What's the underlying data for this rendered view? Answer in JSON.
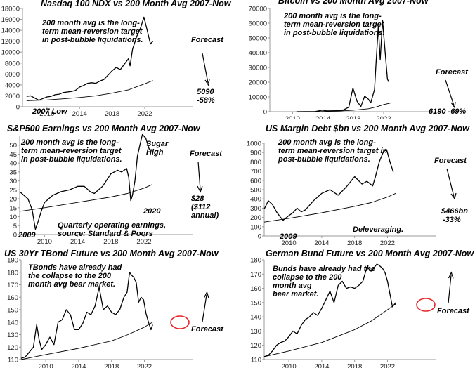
{
  "colors": {
    "price": "#000000",
    "avg": "#000000",
    "axis": "#999999",
    "annot": "#000000",
    "circle": "#e8262a"
  },
  "chart_data": [
    {
      "type": "line",
      "title": "Nasdaq 100 NDX vs 200 Month Avg 2007-Now",
      "yticks": [
        "0",
        "2000",
        "4000",
        "6000",
        "8000",
        "10000",
        "12000",
        "14000",
        "16000",
        "18000"
      ],
      "xticks": [
        "2010",
        "2014",
        "2018",
        "2022"
      ],
      "xlim": [
        2007,
        2027
      ],
      "ylim": [
        0,
        18000
      ],
      "series": [
        {
          "role": "price",
          "x": [
            2007.5,
            2008.0,
            2008.5,
            2009.0,
            2009.5,
            2010.0,
            2010.5,
            2011.0,
            2011.5,
            2012.0,
            2012.5,
            2013.0,
            2013.5,
            2014.0,
            2014.5,
            2015.0,
            2015.5,
            2016.0,
            2016.5,
            2017.0,
            2017.5,
            2018.0,
            2018.5,
            2019.0,
            2019.5,
            2020.0,
            2020.2,
            2020.5,
            2021.0,
            2021.5,
            2021.9,
            2022.3,
            2022.7,
            2023.0
          ],
          "y": [
            1900,
            2000,
            1600,
            1200,
            1500,
            1800,
            1900,
            2200,
            2300,
            2600,
            2700,
            2800,
            3000,
            3600,
            3900,
            4300,
            4400,
            4300,
            4700,
            5000,
            5800,
            6600,
            7200,
            6800,
            7800,
            8800,
            7500,
            10500,
            12800,
            14500,
            16400,
            14000,
            11500,
            12000
          ]
        },
        {
          "role": "avg",
          "x": [
            2007.5,
            2010,
            2012,
            2014,
            2016,
            2018,
            2020,
            2022,
            2023
          ],
          "y": [
            1100,
            1250,
            1450,
            1700,
            2000,
            2500,
            3100,
            4200,
            4800
          ]
        }
      ],
      "annotations": [
        "200 month avg is the long-",
        "term mean-reversion target",
        "in post-bubble liquidations.",
        "Forecast",
        "5090",
        "-58%",
        "2007 Low"
      ]
    },
    {
      "type": "line",
      "title": "Bitcoin vs 200 Month Avg 2007-Now",
      "yticks": [
        "0",
        "10000",
        "20000",
        "30000",
        "40000",
        "50000",
        "60000",
        "70000"
      ],
      "xticks": [
        "2010",
        "2014",
        "2018",
        "2022"
      ],
      "xlim": [
        2007,
        2027
      ],
      "ylim": [
        0,
        70000
      ],
      "series": [
        {
          "role": "price",
          "x": [
            2010.5,
            2013.0,
            2013.9,
            2014.5,
            2016.5,
            2017.4,
            2017.95,
            2018.5,
            2019.0,
            2019.5,
            2020.0,
            2020.3,
            2020.8,
            2021.0,
            2021.3,
            2021.55,
            2021.85,
            2022.2,
            2022.5,
            2022.7
          ],
          "y": [
            0,
            100,
            1000,
            500,
            700,
            3000,
            16000,
            7000,
            3500,
            10500,
            8500,
            6000,
            15000,
            33000,
            58000,
            35000,
            62000,
            40000,
            22000,
            20000
          ]
        },
        {
          "role": "avg",
          "x": [
            2013,
            2016,
            2018,
            2020,
            2021,
            2022,
            2023
          ],
          "y": [
            0,
            400,
            1000,
            2000,
            3200,
            4800,
            6000
          ]
        }
      ],
      "annotations": [
        "200 month avg is the long-",
        "term mean-reversion target",
        "in post-bubble liquidations.",
        "Forecast",
        "6190 -69%"
      ]
    },
    {
      "type": "line",
      "title": "S&P500 Earnings vs 200 Month Avg 2007-Now",
      "yticks": [
        "0",
        "5",
        "10",
        "15",
        "20",
        "25",
        "30",
        "35",
        "40",
        "45",
        "50"
      ],
      "xticks": [
        "2010",
        "2014",
        "2018",
        "2022"
      ],
      "xlim": [
        2007,
        2027
      ],
      "ylim": [
        0,
        55
      ],
      "series": [
        {
          "role": "price",
          "x": [
            2007.0,
            2007.5,
            2008.0,
            2008.5,
            2008.9,
            2009.2,
            2009.6,
            2010.0,
            2010.5,
            2011.0,
            2012.0,
            2013.0,
            2014.0,
            2014.8,
            2015.5,
            2016.0,
            2016.5,
            2017.0,
            2018.0,
            2018.8,
            2019.3,
            2019.9,
            2020.15,
            2020.4,
            2020.6,
            2020.9,
            2021.2,
            2021.5,
            2021.8,
            2022.2,
            2022.6,
            2022.9
          ],
          "y": [
            24,
            22,
            20,
            14,
            3,
            7,
            13,
            18,
            20,
            22,
            24,
            25,
            27,
            27,
            24,
            23,
            25,
            27,
            34,
            36,
            35,
            37,
            32,
            19,
            22,
            30,
            44,
            50,
            56,
            54,
            48,
            47
          ]
        },
        {
          "role": "avg",
          "x": [
            2007,
            2010,
            2014,
            2018,
            2020,
            2022,
            2023
          ],
          "y": [
            13,
            15,
            18,
            21,
            23,
            26,
            28
          ]
        }
      ],
      "annotations": [
        "200 month avg is the long-",
        "term mean-reversion target",
        "in post-bubble liquidations.",
        "Sugar",
        "High",
        "Forecast",
        "$28",
        "($112",
        "annual)",
        "2020",
        "2009",
        "Quarterly operating earnings,",
        "source: Standard & Poors"
      ]
    },
    {
      "type": "line",
      "title": "US Margin Debt $bn vs 200 Month Avg 2007-Now",
      "yticks": [
        "0",
        "100",
        "200",
        "300",
        "400",
        "500",
        "600",
        "700",
        "800",
        "900",
        "1000"
      ],
      "xticks": [
        "2010",
        "2014",
        "2018",
        "2022"
      ],
      "xlim": [
        2007,
        2027
      ],
      "ylim": [
        0,
        1000
      ],
      "series": [
        {
          "role": "price",
          "x": [
            2007.0,
            2007.5,
            2008.0,
            2008.5,
            2009.0,
            2009.3,
            2010.0,
            2010.5,
            2011.0,
            2011.5,
            2012.0,
            2013.0,
            2014.0,
            2015.0,
            2015.5,
            2016.0,
            2017.0,
            2018.0,
            2018.9,
            2019.5,
            2020.2,
            2020.5,
            2021.0,
            2021.5,
            2021.9,
            2022.3,
            2022.7
          ],
          "y": [
            290,
            380,
            340,
            260,
            200,
            170,
            220,
            250,
            300,
            260,
            280,
            380,
            460,
            500,
            470,
            440,
            530,
            640,
            560,
            590,
            540,
            630,
            800,
            910,
            930,
            800,
            690
          ]
        },
        {
          "role": "avg",
          "x": [
            2007,
            2010,
            2014,
            2018,
            2020,
            2022,
            2023
          ],
          "y": [
            150,
            190,
            250,
            320,
            360,
            420,
            460
          ]
        }
      ],
      "annotations": [
        "200 month avg is the long-",
        "term mean-reversion target in",
        "post-bubble liquidations.",
        "Forecast",
        "$466bn",
        "-33%",
        "2009",
        "Deleveraging."
      ]
    },
    {
      "type": "line",
      "title": "US 30Yr TBond Future vs 200 Month Avg 2007-Now",
      "yticks": [
        "110",
        "120",
        "130",
        "140",
        "150",
        "160",
        "170",
        "180",
        "190"
      ],
      "xticks": [
        "2010",
        "2014",
        "2018",
        "2022"
      ],
      "xlim": [
        2007,
        2027
      ],
      "ylim": [
        110,
        190
      ],
      "series": [
        {
          "role": "price",
          "x": [
            2007.0,
            2007.5,
            2008.0,
            2008.5,
            2008.9,
            2009.2,
            2009.5,
            2010.0,
            2010.5,
            2011.0,
            2011.5,
            2012.0,
            2012.5,
            2013.0,
            2013.5,
            2014.0,
            2014.5,
            2015.0,
            2015.5,
            2016.0,
            2016.5,
            2017.0,
            2017.5,
            2018.0,
            2018.5,
            2019.0,
            2019.5,
            2019.9,
            2020.2,
            2020.4,
            2020.7,
            2021.0,
            2021.3,
            2021.6,
            2021.9,
            2022.2,
            2022.5,
            2022.8,
            2023.0
          ],
          "y": [
            111,
            112,
            116,
            120,
            138,
            126,
            118,
            122,
            128,
            122,
            140,
            142,
            150,
            146,
            134,
            134,
            139,
            148,
            146,
            153,
            168,
            150,
            153,
            148,
            146,
            150,
            160,
            164,
            180,
            178,
            176,
            172,
            156,
            160,
            158,
            147,
            140,
            134,
            138
          ]
        },
        {
          "role": "avg",
          "x": [
            2007,
            2010,
            2014,
            2018,
            2020,
            2022,
            2023
          ],
          "y": [
            110,
            114,
            119,
            125,
            130,
            136,
            140
          ]
        }
      ],
      "annotations": [
        "TBonds have already had",
        "the collapse to the 200",
        "month avg bear market.",
        "Forecast"
      ]
    },
    {
      "type": "line",
      "title": "German Bund Future vs 200 Month Avg 2007-Now",
      "yticks": [
        "110",
        "120",
        "130",
        "140",
        "150",
        "160",
        "170",
        "180"
      ],
      "xticks": [
        "2010",
        "2014",
        "2018",
        "2022"
      ],
      "xlim": [
        2007,
        2027
      ],
      "ylim": [
        110,
        180
      ],
      "series": [
        {
          "role": "price",
          "x": [
            2007.0,
            2007.5,
            2008.0,
            2008.5,
            2009.0,
            2009.5,
            2010.0,
            2010.5,
            2011.0,
            2011.5,
            2012.0,
            2012.5,
            2013.0,
            2013.5,
            2014.0,
            2014.5,
            2015.0,
            2015.5,
            2016.0,
            2016.5,
            2017.0,
            2017.5,
            2018.0,
            2018.5,
            2019.0,
            2019.5,
            2020.0,
            2020.3,
            2020.7,
            2021.0,
            2021.4,
            2021.7,
            2022.0,
            2022.3,
            2022.6,
            2023.0
          ],
          "y": [
            112,
            113,
            116,
            120,
            122,
            123,
            126,
            130,
            128,
            134,
            138,
            140,
            143,
            141,
            146,
            152,
            158,
            150,
            162,
            165,
            160,
            161,
            160,
            162,
            165,
            175,
            172,
            174,
            177,
            176,
            174,
            171,
            165,
            156,
            147,
            150
          ]
        },
        {
          "role": "avg",
          "x": [
            2007,
            2010,
            2014,
            2018,
            2020,
            2022,
            2023
          ],
          "y": [
            112,
            116,
            122,
            131,
            137,
            145,
            149
          ]
        }
      ],
      "annotations": [
        "Bunds have already had the",
        "collapse to the 200",
        "month avg",
        "bear market.",
        "Forecast"
      ]
    }
  ]
}
